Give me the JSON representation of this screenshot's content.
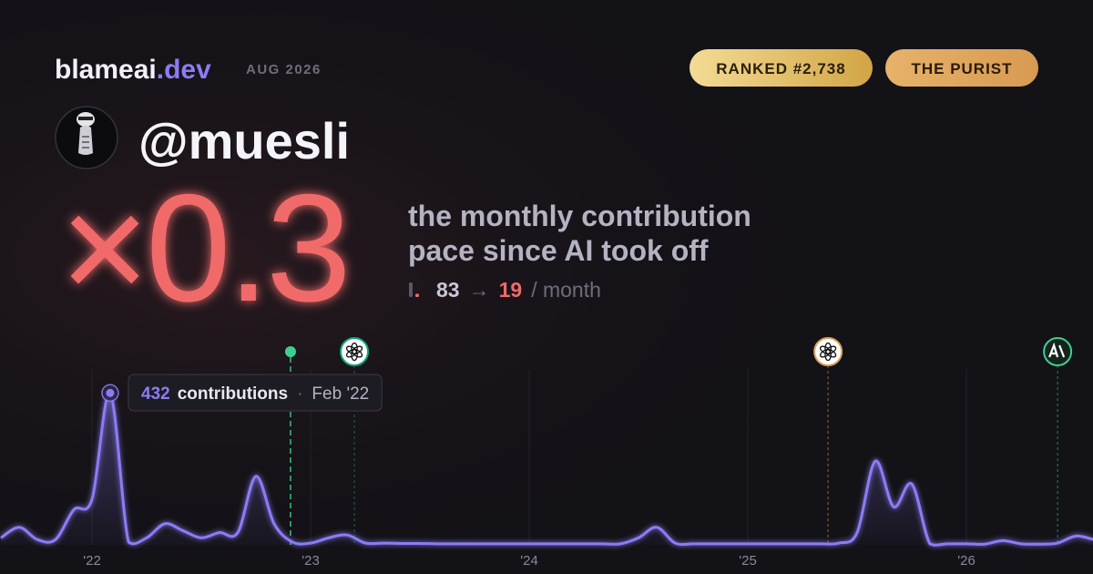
{
  "header": {
    "brand": "blameai",
    "brand_tld": ".dev",
    "date": "AUG 2026",
    "rank_badge": "RANKED #2,738",
    "persona_badge": "THE PURIST"
  },
  "profile": {
    "handle": "@muesli"
  },
  "stat": {
    "multiplier": "×0.3",
    "description": [
      "the monthly contribution",
      "pace since AI took off"
    ],
    "before": 83,
    "arrow": "→",
    "after": 19,
    "unit": "/ month"
  },
  "chart_data": {
    "type": "line",
    "x": [
      2021.583,
      2021.667,
      2021.75,
      2021.833,
      2021.917,
      2022.0,
      2022.083,
      2022.167,
      2022.25,
      2022.333,
      2022.417,
      2022.5,
      2022.583,
      2022.667,
      2022.75,
      2022.833,
      2022.917,
      2023.0,
      2023.083,
      2023.167,
      2023.25,
      2023.333,
      2023.417,
      2023.5,
      2023.583,
      2023.667,
      2023.75,
      2023.833,
      2023.917,
      2024.0,
      2024.083,
      2024.167,
      2024.25,
      2024.333,
      2024.417,
      2024.5,
      2024.583,
      2024.667,
      2024.75,
      2024.833,
      2024.917,
      2025.0,
      2025.083,
      2025.167,
      2025.25,
      2025.333,
      2025.417,
      2025.5,
      2025.583,
      2025.667,
      2025.75,
      2025.833,
      2025.917,
      2026.0,
      2026.083,
      2026.167,
      2026.25,
      2026.333,
      2026.417,
      2026.5,
      2026.583
    ],
    "values": [
      20,
      50,
      15,
      15,
      100,
      130,
      432,
      8,
      20,
      60,
      40,
      20,
      35,
      35,
      195,
      60,
      8,
      5,
      20,
      28,
      5,
      5,
      4,
      4,
      3,
      3,
      3,
      3,
      3,
      3,
      3,
      3,
      3,
      3,
      3,
      20,
      50,
      5,
      3,
      3,
      3,
      3,
      3,
      3,
      3,
      3,
      5,
      35,
      238,
      108,
      173,
      3,
      3,
      3,
      2,
      12,
      3,
      2,
      5,
      25,
      15
    ],
    "color": "#8b7cf6",
    "xlim": [
      2021.579,
      2026.579
    ],
    "ylim": [
      0,
      500
    ],
    "xticks": [
      {
        "value": 2022,
        "label": "'22"
      },
      {
        "value": 2023,
        "label": "'23"
      },
      {
        "value": 2024,
        "label": "'24"
      },
      {
        "value": 2025,
        "label": "'25"
      },
      {
        "value": 2026,
        "label": "'26"
      }
    ],
    "grid": true,
    "tooltip": {
      "label": "contributions",
      "separator": "·",
      "date": "Feb '22"
    },
    "events": [
      {
        "x": 2022.908,
        "icon": "dot",
        "color": "#3ecf8e"
      },
      {
        "x": 2023.2,
        "icon": "openai",
        "color": "#10a37f"
      },
      {
        "x": 2025.367,
        "icon": "openai",
        "color": "#d9a45a"
      },
      {
        "x": 2026.417,
        "icon": "anthropic",
        "color": "#3ecf8e"
      }
    ]
  }
}
